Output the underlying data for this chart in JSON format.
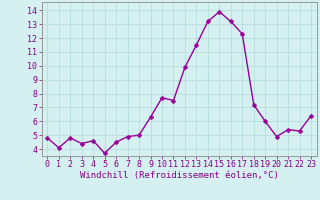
{
  "x": [
    0,
    1,
    2,
    3,
    4,
    5,
    6,
    7,
    8,
    9,
    10,
    11,
    12,
    13,
    14,
    15,
    16,
    17,
    18,
    19,
    20,
    21,
    22,
    23
  ],
  "y": [
    4.8,
    4.1,
    4.8,
    4.4,
    4.6,
    3.7,
    4.5,
    4.9,
    5.0,
    6.3,
    7.7,
    7.5,
    9.9,
    11.5,
    13.2,
    13.9,
    13.2,
    12.3,
    7.2,
    6.0,
    4.9,
    5.4,
    5.3,
    6.4
  ],
  "xlabel": "Windchill (Refroidissement éolien,°C)",
  "ylim": [
    3.5,
    14.6
  ],
  "yticks": [
    4,
    5,
    6,
    7,
    8,
    9,
    10,
    11,
    12,
    13,
    14
  ],
  "xticks": [
    0,
    1,
    2,
    3,
    4,
    5,
    6,
    7,
    8,
    9,
    10,
    11,
    12,
    13,
    14,
    15,
    16,
    17,
    18,
    19,
    20,
    21,
    22,
    23
  ],
  "xtick_labels": [
    "0",
    "1",
    "2",
    "3",
    "4",
    "5",
    "6",
    "7",
    "8",
    "9",
    "10",
    "11",
    "12",
    "13",
    "14",
    "15",
    "16",
    "17",
    "18",
    "19",
    "20",
    "21",
    "22",
    "23"
  ],
  "line_color": "#990099",
  "marker_color": "#990099",
  "bg_color": "#d4f0f0",
  "grid_color": "#b8dede",
  "tick_label_color": "#880088",
  "xlabel_color": "#880088",
  "xlabel_fontsize": 6.5,
  "tick_fontsize": 6.0,
  "line_width": 1.0,
  "marker_size": 2.5,
  "spine_color": "#999999"
}
